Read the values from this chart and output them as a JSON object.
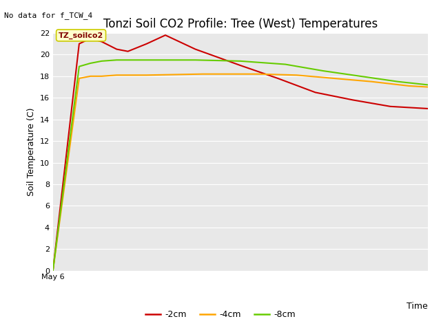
{
  "title": "Tonzi Soil CO2 Profile: Tree (West) Temperatures",
  "no_data_label": "No data for f_TCW_4",
  "annotation_label": "TZ_soilco2",
  "xlabel": "Time",
  "ylabel": "Soil Temperature (C)",
  "xlim": [
    0,
    1.0
  ],
  "ylim": [
    0,
    22
  ],
  "yticks": [
    0,
    2,
    4,
    6,
    8,
    10,
    12,
    14,
    16,
    18,
    20,
    22
  ],
  "xticklabel": "May 6",
  "fig_bg_color": "#ffffff",
  "plot_bg_color": "#e8e8e8",
  "series": {
    "2cm": {
      "color": "#cc0000",
      "label": "-2cm",
      "x": [
        0.0,
        0.07,
        0.1,
        0.13,
        0.17,
        0.2,
        0.25,
        0.3,
        0.38,
        0.5,
        0.6,
        0.7,
        0.8,
        0.9,
        1.0
      ],
      "y": [
        0.0,
        21.0,
        21.5,
        21.2,
        20.5,
        20.3,
        21.0,
        21.8,
        20.5,
        19.0,
        17.8,
        16.5,
        15.8,
        15.2,
        15.0
      ]
    },
    "4cm": {
      "color": "#ffa500",
      "label": "-4cm",
      "x": [
        0.0,
        0.07,
        0.1,
        0.13,
        0.17,
        0.25,
        0.4,
        0.55,
        0.65,
        0.75,
        0.85,
        0.95,
        1.0
      ],
      "y": [
        0.0,
        17.8,
        18.0,
        18.0,
        18.1,
        18.1,
        18.2,
        18.2,
        18.1,
        17.8,
        17.5,
        17.1,
        17.0
      ]
    },
    "8cm": {
      "color": "#66cc00",
      "label": "-8cm",
      "x": [
        0.0,
        0.07,
        0.1,
        0.13,
        0.17,
        0.25,
        0.38,
        0.5,
        0.62,
        0.72,
        0.82,
        0.92,
        1.0
      ],
      "y": [
        0.0,
        18.9,
        19.2,
        19.4,
        19.5,
        19.5,
        19.5,
        19.4,
        19.1,
        18.5,
        18.0,
        17.5,
        17.2
      ]
    }
  },
  "title_fontsize": 12,
  "axis_label_fontsize": 9,
  "tick_fontsize": 8,
  "legend_fontsize": 9,
  "annotation_fontsize": 8,
  "no_data_fontsize": 8
}
